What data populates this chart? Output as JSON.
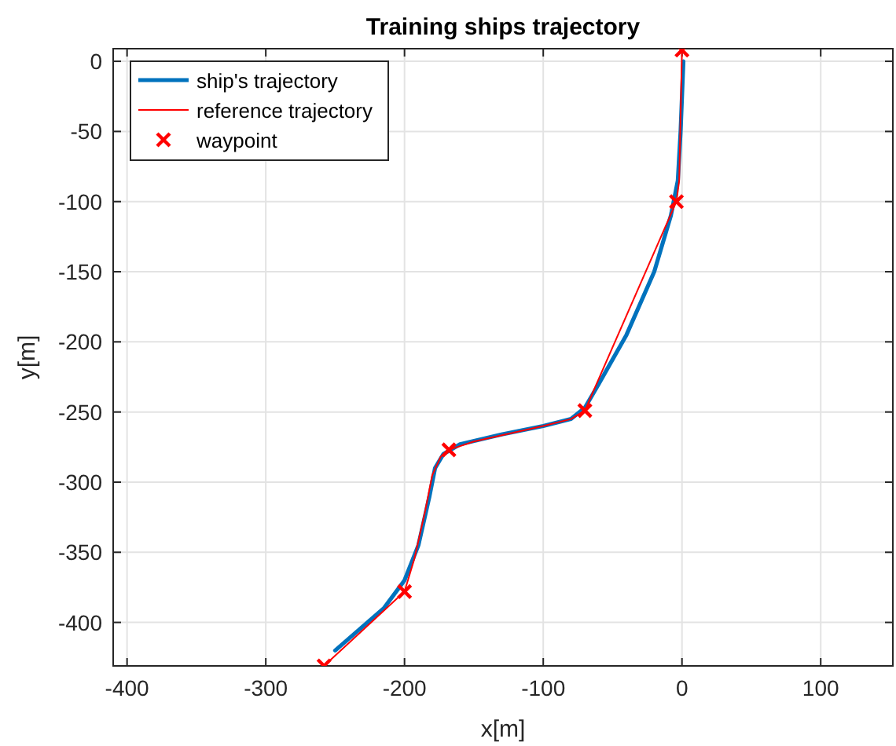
{
  "chart_data": {
    "type": "line",
    "title": "Training ships trajectory",
    "xlabel": "x[m]",
    "ylabel": "y[m]",
    "xlim": [
      -410,
      152
    ],
    "ylim": [
      -431,
      9
    ],
    "xticks": [
      -400,
      -300,
      -200,
      -100,
      0,
      100
    ],
    "yticks": [
      -400,
      -350,
      -300,
      -250,
      -200,
      -150,
      -100,
      -50,
      0
    ],
    "grid": true,
    "legend": "top left",
    "series": [
      {
        "name": "ship's trajectory",
        "color": "#0072bd",
        "marker": "none",
        "x": [
          -250,
          -215,
          -200,
          -190,
          -182,
          -178,
          -172,
          -160,
          -130,
          -100,
          -80,
          -70,
          -60,
          -40,
          -20,
          -8,
          -3,
          -1,
          1
        ],
        "values": [
          -420,
          -390,
          -370,
          -345,
          -310,
          -290,
          -280,
          -273,
          -266,
          -260,
          -255,
          -247,
          -230,
          -195,
          -150,
          -110,
          -85,
          -50,
          0
        ]
      },
      {
        "name": "reference trajectory",
        "color": "#ff0000",
        "marker": "none",
        "x": [
          -258,
          -200,
          -193,
          -185,
          -180,
          -174,
          -168,
          -150,
          -100,
          -80,
          -70,
          -4,
          -2,
          0
        ],
        "values": [
          -431,
          -378,
          -355,
          -320,
          -295,
          -282,
          -277,
          -271,
          -260,
          -255,
          -249,
          -100,
          -85,
          8
        ]
      },
      {
        "name": "waypoint",
        "type": "scatter",
        "color": "#ff0000",
        "marker": "cross",
        "x": [
          -258,
          -200,
          -168,
          -70,
          -4,
          0
        ],
        "values": [
          -431,
          -378,
          -277,
          -249,
          -100,
          8
        ]
      }
    ]
  }
}
